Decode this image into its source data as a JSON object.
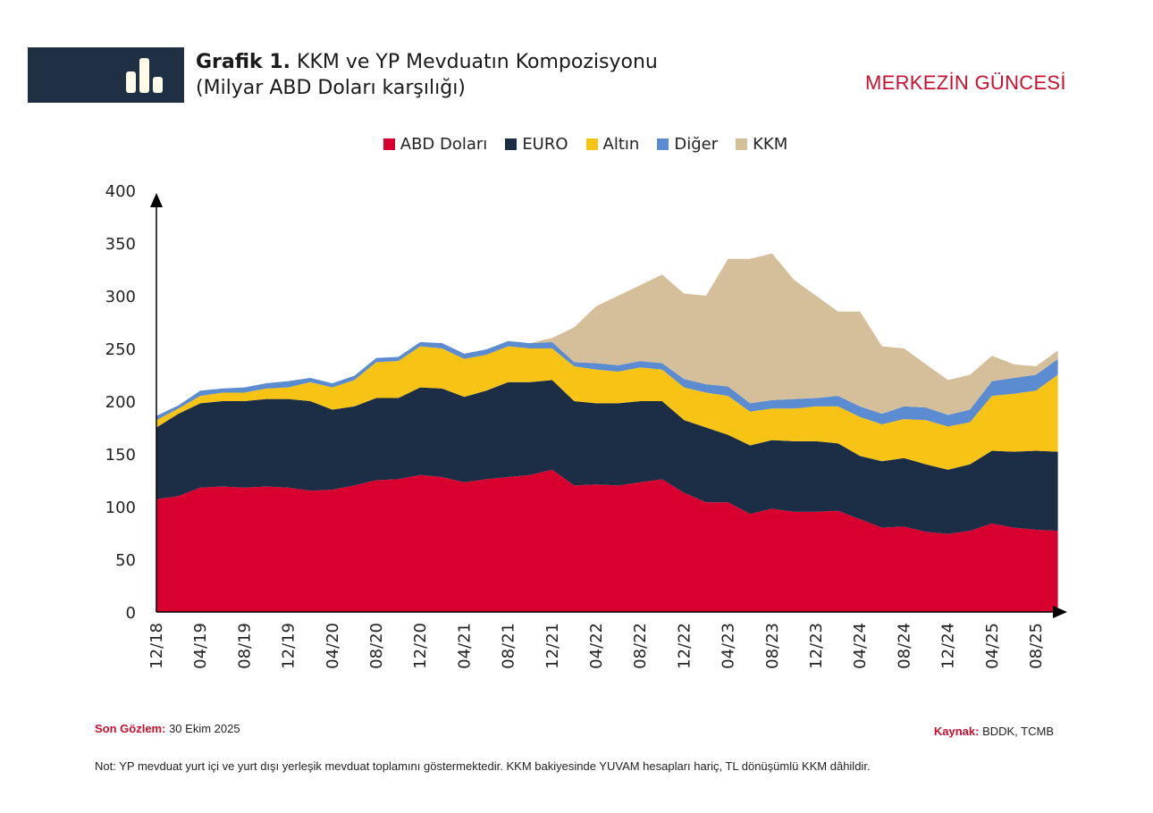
{
  "header": {
    "title_bold": "Grafik 1.",
    "title_rest": "KKM ve YP Mevduatın Kompozisyonu",
    "subtitle": "(Milyar ABD Doları karşılığı)",
    "brand": "MERKEZİN GÜNCESİ",
    "icon": "bar-chart-icon"
  },
  "footer": {
    "last_obs_label": "Son Gözlem:",
    "last_obs_value": "30 Ekim 2025",
    "source_label": "Kaynak:",
    "source_value": "BDDK, TCMB",
    "note": "Not: YP mevduat yurt içi ve yurt dışı yerleşik mevduat toplamını göstermektedir. KKM bakiyesinde YUVAM hesapları hariç, TL dönüşümlü  KKM dâhildir."
  },
  "chart_data": {
    "type": "area",
    "stacked": true,
    "legend_position": "top",
    "grid": false,
    "ylim": [
      0,
      400
    ],
    "yticks": [
      "0",
      "50",
      "100",
      "150",
      "200",
      "250",
      "300",
      "350",
      "400"
    ],
    "xticks": [
      "12/18",
      "04/19",
      "08/19",
      "12/19",
      "04/20",
      "08/20",
      "12/20",
      "04/21",
      "08/21",
      "12/21",
      "04/22",
      "08/22",
      "12/22",
      "04/23",
      "08/23",
      "12/23",
      "04/24",
      "08/24",
      "12/24",
      "04/25",
      "08/25"
    ],
    "x": [
      "12/18",
      "02/19",
      "04/19",
      "06/19",
      "08/19",
      "10/19",
      "12/19",
      "02/20",
      "04/20",
      "06/20",
      "08/20",
      "10/20",
      "12/20",
      "02/21",
      "04/21",
      "06/21",
      "08/21",
      "10/21",
      "12/21",
      "02/22",
      "04/22",
      "06/22",
      "08/22",
      "10/22",
      "12/22",
      "02/23",
      "04/23",
      "06/23",
      "08/23",
      "10/23",
      "12/23",
      "02/24",
      "04/24",
      "06/24",
      "08/24",
      "10/24",
      "12/24",
      "02/25",
      "04/25",
      "06/25",
      "08/25",
      "10/25"
    ],
    "series": [
      {
        "name": "ABD Doları",
        "color": "#d7002e",
        "values": [
          107,
          110,
          118,
          119,
          118,
          119,
          118,
          115,
          116,
          120,
          125,
          126,
          130,
          128,
          123,
          126,
          128,
          130,
          135,
          120,
          121,
          120,
          123,
          126,
          113,
          104,
          104,
          93,
          98,
          95,
          95,
          96,
          88,
          80,
          81,
          76,
          74,
          77,
          84,
          80,
          78,
          77
        ]
      },
      {
        "name": "EURO",
        "color": "#1c2e45",
        "values": [
          68,
          78,
          80,
          81,
          82,
          83,
          84,
          85,
          76,
          75,
          78,
          77,
          83,
          84,
          81,
          84,
          90,
          88,
          85,
          80,
          77,
          78,
          77,
          74,
          69,
          71,
          64,
          65,
          65,
          67,
          67,
          64,
          60,
          63,
          65,
          64,
          61,
          63,
          69,
          72,
          75,
          75
        ]
      },
      {
        "name": "Altın",
        "color": "#f7c315",
        "values": [
          7,
          5,
          7,
          8,
          8,
          10,
          11,
          18,
          21,
          25,
          34,
          35,
          39,
          38,
          36,
          34,
          34,
          32,
          30,
          33,
          32,
          30,
          32,
          30,
          31,
          33,
          37,
          32,
          30,
          31,
          33,
          35,
          37,
          35,
          37,
          42,
          41,
          40,
          52,
          55,
          57,
          73
        ]
      },
      {
        "name": "Diğer",
        "color": "#5b8bd0",
        "values": [
          4,
          3,
          5,
          4,
          5,
          5,
          6,
          4,
          4,
          4,
          4,
          4,
          4,
          5,
          5,
          5,
          5,
          5,
          6,
          4,
          6,
          6,
          6,
          6,
          8,
          8,
          9,
          8,
          8,
          9,
          8,
          10,
          10,
          10,
          12,
          12,
          11,
          12,
          14,
          15,
          15,
          15
        ]
      },
      {
        "name": "KKM",
        "color": "#d5bf9a",
        "values": [
          0,
          0,
          0,
          0,
          0,
          0,
          0,
          0,
          0,
          0,
          0,
          0,
          0,
          0,
          0,
          0,
          0,
          0,
          4,
          33,
          54,
          66,
          72,
          84,
          81,
          84,
          121,
          137,
          139,
          113,
          97,
          80,
          90,
          64,
          55,
          41,
          33,
          33,
          24,
          13,
          8,
          8
        ]
      }
    ]
  }
}
